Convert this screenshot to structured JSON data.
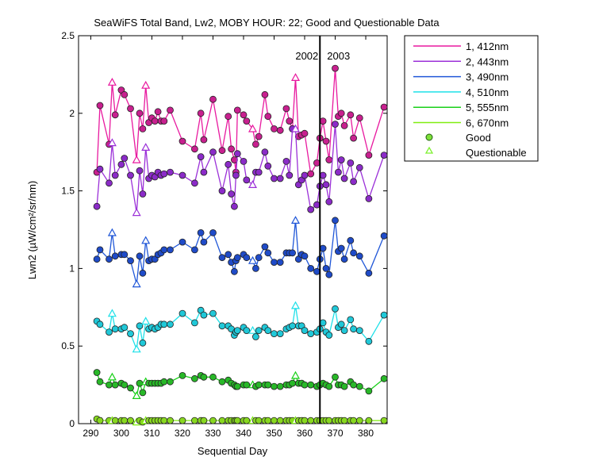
{
  "chart_data": {
    "type": "line",
    "title": "SeaWiFS Total Band, Lw2, MOBY HOUR: 22;  Good and Questionable Data",
    "xlabel": "Sequential Day",
    "ylabel": "Lwn2 (µW/cm²/sr/nm)",
    "xlim": [
      286,
      387
    ],
    "ylim": [
      0,
      2.5
    ],
    "x_ticks": [
      290,
      300,
      310,
      320,
      330,
      340,
      350,
      360,
      370,
      380
    ],
    "y_ticks": [
      0,
      0.5,
      1,
      1.5,
      2,
      2.5
    ],
    "y_tick_labels": [
      "0",
      "0.5",
      "1",
      "1.5",
      "2",
      "2.5"
    ],
    "grid": false,
    "legend_position": "outside-right",
    "year_divider": {
      "x": 365,
      "left_label": "2002",
      "right_label": "2003"
    },
    "legend_markers": {
      "good": "Good",
      "questionable": "Questionable"
    },
    "x": [
      292,
      293,
      296,
      297,
      298,
      300,
      301,
      303,
      305,
      306,
      307,
      308,
      309,
      310,
      311,
      312,
      313,
      314,
      316,
      320,
      324,
      326,
      327,
      330,
      333,
      335,
      336,
      337,
      337.5,
      338,
      340,
      341,
      343,
      344,
      345,
      347,
      348,
      350,
      352,
      354,
      355,
      356,
      357,
      358,
      359,
      360,
      362,
      364,
      365,
      366,
      367,
      368,
      370,
      371,
      372,
      373,
      375,
      376,
      378,
      381,
      386
    ],
    "questionable_x": [
      297,
      305,
      308,
      343,
      357
    ],
    "series": [
      {
        "name": "1, 412nm",
        "color": "#e8199f",
        "marker_color": "#c8208f",
        "values": [
          1.62,
          2.05,
          1.8,
          2.2,
          1.99,
          2.15,
          2.12,
          2.03,
          1.7,
          2.0,
          1.9,
          2.18,
          1.94,
          1.97,
          1.95,
          2.01,
          1.95,
          1.95,
          2.02,
          1.82,
          1.77,
          2.0,
          1.83,
          2.09,
          1.76,
          1.98,
          1.77,
          1.7,
          1.62,
          2.02,
          1.99,
          1.95,
          1.9,
          1.8,
          1.85,
          2.12,
          1.98,
          1.9,
          1.89,
          2.03,
          1.95,
          1.9,
          2.23,
          1.85,
          1.86,
          1.87,
          1.61,
          1.68,
          1.84,
          1.95,
          1.82,
          1.7,
          2.29,
          1.98,
          2.0,
          1.92,
          1.99,
          1.84,
          1.97,
          1.73,
          2.04
        ]
      },
      {
        "name": "2, 443nm",
        "color": "#9b30d8",
        "marker_color": "#8b2bc8",
        "values": [
          1.4,
          1.64,
          1.55,
          1.81,
          1.6,
          1.67,
          1.71,
          1.6,
          1.36,
          1.63,
          1.48,
          1.78,
          1.58,
          1.6,
          1.59,
          1.62,
          1.6,
          1.61,
          1.62,
          1.6,
          1.55,
          1.72,
          1.62,
          1.75,
          1.5,
          1.67,
          1.48,
          1.4,
          1.6,
          1.74,
          1.69,
          1.57,
          1.54,
          1.62,
          1.62,
          1.75,
          1.66,
          1.58,
          1.58,
          1.69,
          1.6,
          1.9,
          1.9,
          1.54,
          1.57,
          1.6,
          1.38,
          1.41,
          1.53,
          1.6,
          1.54,
          1.43,
          1.93,
          1.62,
          1.7,
          1.58,
          1.68,
          1.56,
          1.65,
          1.45,
          1.73
        ]
      },
      {
        "name": "3, 490nm",
        "color": "#2057d8",
        "marker_color": "#1f4bc8",
        "values": [
          1.06,
          1.12,
          1.06,
          1.23,
          1.08,
          1.09,
          1.09,
          1.05,
          0.9,
          1.08,
          0.97,
          1.18,
          1.05,
          1.06,
          1.06,
          1.09,
          1.1,
          1.12,
          1.12,
          1.17,
          1.12,
          1.23,
          1.17,
          1.23,
          1.07,
          1.09,
          1.04,
          0.98,
          1.05,
          1.07,
          1.09,
          1.07,
          1.05,
          1.0,
          1.07,
          1.14,
          1.1,
          1.04,
          1.04,
          1.1,
          1.1,
          1.1,
          1.31,
          1.06,
          1.09,
          1.08,
          1.0,
          0.98,
          1.06,
          1.13,
          1.0,
          0.96,
          1.31,
          1.11,
          1.13,
          1.06,
          1.18,
          1.1,
          1.08,
          0.97,
          1.21
        ]
      },
      {
        "name": "4, 510nm",
        "color": "#1ee0e8",
        "marker_color": "#20c8d8",
        "values": [
          0.66,
          0.64,
          0.59,
          0.71,
          0.61,
          0.61,
          0.62,
          0.58,
          0.48,
          0.63,
          0.52,
          0.66,
          0.61,
          0.62,
          0.61,
          0.62,
          0.64,
          0.64,
          0.64,
          0.71,
          0.65,
          0.73,
          0.7,
          0.71,
          0.63,
          0.63,
          0.61,
          0.57,
          0.59,
          0.6,
          0.62,
          0.6,
          0.6,
          0.56,
          0.6,
          0.62,
          0.6,
          0.58,
          0.58,
          0.61,
          0.62,
          0.63,
          0.76,
          0.63,
          0.63,
          0.6,
          0.58,
          0.59,
          0.61,
          0.65,
          0.59,
          0.57,
          0.74,
          0.62,
          0.64,
          0.6,
          0.67,
          0.61,
          0.6,
          0.53,
          0.7
        ]
      },
      {
        "name": "5, 555nm",
        "color": "#18d018",
        "marker_color": "#28b828",
        "values": [
          0.33,
          0.27,
          0.25,
          0.3,
          0.25,
          0.26,
          0.25,
          0.23,
          0.18,
          0.26,
          0.2,
          0.27,
          0.26,
          0.26,
          0.26,
          0.26,
          0.26,
          0.27,
          0.27,
          0.31,
          0.29,
          0.31,
          0.3,
          0.3,
          0.27,
          0.28,
          0.26,
          0.25,
          0.24,
          0.24,
          0.25,
          0.25,
          0.25,
          0.24,
          0.25,
          0.25,
          0.25,
          0.24,
          0.24,
          0.25,
          0.25,
          0.26,
          0.31,
          0.26,
          0.26,
          0.25,
          0.25,
          0.24,
          0.25,
          0.26,
          0.25,
          0.24,
          0.3,
          0.25,
          0.25,
          0.24,
          0.27,
          0.25,
          0.24,
          0.21,
          0.29
        ]
      },
      {
        "name": "6, 670nm",
        "color": "#80ee10",
        "marker_color": "#88d820",
        "values": [
          0.03,
          0.02,
          0.02,
          0.02,
          0.02,
          0.02,
          0.02,
          0.02,
          0.01,
          0.02,
          0.01,
          0.02,
          0.02,
          0.02,
          0.02,
          0.02,
          0.02,
          0.02,
          0.02,
          0.02,
          0.02,
          0.02,
          0.02,
          0.02,
          0.02,
          0.02,
          0.02,
          0.02,
          0.02,
          0.02,
          0.02,
          0.02,
          0.02,
          0.02,
          0.02,
          0.02,
          0.02,
          0.02,
          0.02,
          0.02,
          0.02,
          0.02,
          0.02,
          0.02,
          0.02,
          0.02,
          0.02,
          0.02,
          0.02,
          0.02,
          0.02,
          0.02,
          0.02,
          0.02,
          0.02,
          0.02,
          0.02,
          0.02,
          0.02,
          0.02,
          0.02
        ]
      }
    ]
  }
}
